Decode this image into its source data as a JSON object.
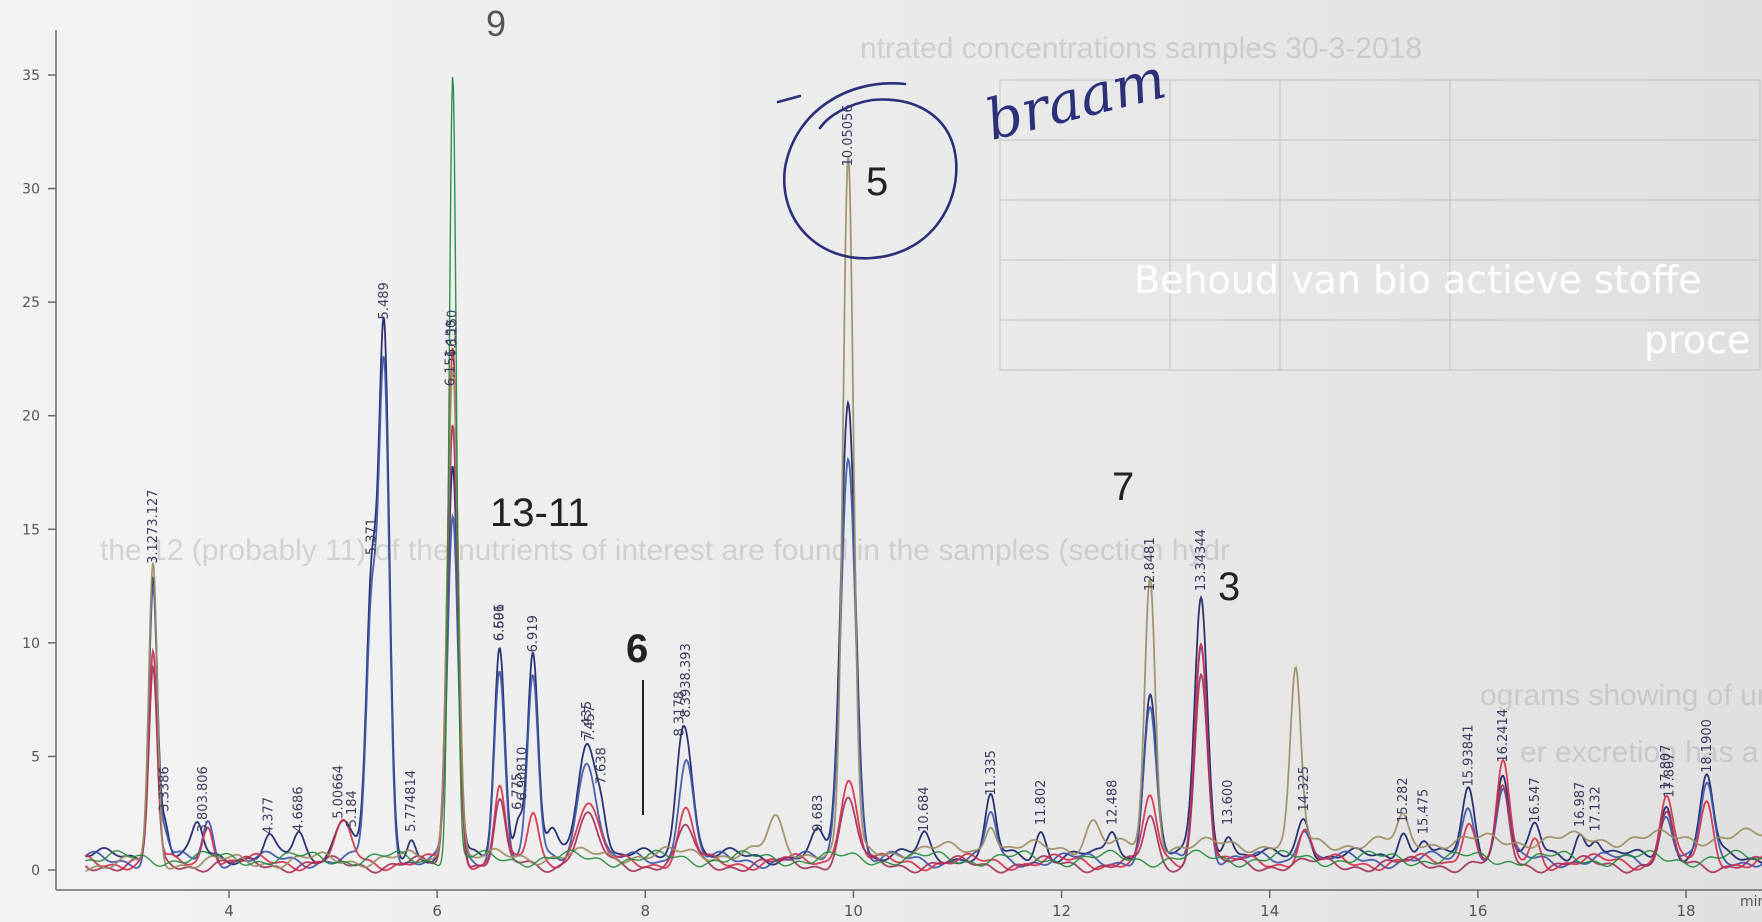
{
  "overlay": {
    "line1": "Behoud van bio actieve stoffe",
    "line2": "proce"
  },
  "background_doc": {
    "heading": "ntrated concentrations samples 30-3-2018",
    "paragraph1": "the 12 (probably 11) of the nutrients of interest are found in the samples (section hydr",
    "paragraph2_line1": "ograms showing of unknown compounds that show a similar ratio at to the nutrie",
    "paragraph2_line2": "er excretion has a higher amount of accurate quantification the chromatogram can be use"
  },
  "annotations": {
    "peak_9": "9",
    "peak_13_11": "13-11",
    "peak_6": "6",
    "peak_5": "5",
    "peak_7": "7",
    "peak_3": "3",
    "handwritten": "braam"
  },
  "colors": {
    "background": "#ebebeb",
    "axis": "#6a6a6a",
    "navy": "#1c2468",
    "blue": "#3d57a8",
    "red": "#d6304c",
    "magenta": "#a3345c",
    "olive": "#9c8e68",
    "green": "#1e8a3a",
    "ink": "#2c2f7a",
    "overlay_text": "#ffffff"
  },
  "chart_data": {
    "type": "line",
    "title": "",
    "xlabel": "min",
    "ylabel": "",
    "xlim": [
      2.6,
      19.2
    ],
    "ylim": [
      -0.5,
      37
    ],
    "x_ticks": [
      4,
      6,
      8,
      10,
      12,
      14,
      16,
      18
    ],
    "y_ticks": [
      0,
      5,
      10,
      15,
      20,
      25,
      30,
      35
    ],
    "grid": false,
    "series": [
      {
        "baseline": 0.6,
        "color": "#1c2468",
        "peaks": [
          [
            3.27,
            12.5,
            0.04
          ],
          [
            3.38,
            1.5,
            0.04
          ],
          [
            3.7,
            1.3,
            0.05
          ],
          [
            4.38,
            0.8,
            0.05
          ],
          [
            4.67,
            0.9,
            0.05
          ],
          [
            5.1,
            1.8,
            0.08
          ],
          [
            5.37,
            11.8,
            0.05
          ],
          [
            5.49,
            22.8,
            0.05
          ],
          [
            5.75,
            0.9,
            0.04
          ],
          [
            6.15,
            17,
            0.05
          ],
          [
            6.6,
            9.3,
            0.05
          ],
          [
            6.78,
            1.8,
            0.04
          ],
          [
            6.92,
            8.8,
            0.05
          ],
          [
            7.1,
            1,
            0.05
          ],
          [
            7.44,
            5,
            0.09
          ],
          [
            7.58,
            1.5,
            0.05
          ],
          [
            8.39,
            5.2,
            0.07
          ],
          [
            8.33,
            1.5,
            0.05
          ],
          [
            9.66,
            0.9,
            0.06
          ],
          [
            9.95,
            20,
            0.07
          ],
          [
            10.68,
            0.9,
            0.05
          ],
          [
            11.32,
            2.5,
            0.05
          ],
          [
            11.8,
            1.2,
            0.05
          ],
          [
            12.49,
            1.2,
            0.05
          ],
          [
            12.85,
            7.2,
            0.06
          ],
          [
            13.34,
            11.5,
            0.06
          ],
          [
            13.6,
            1.2,
            0.05
          ],
          [
            14.33,
            1.8,
            0.06
          ],
          [
            15.28,
            1.3,
            0.05
          ],
          [
            15.48,
            0.8,
            0.05
          ],
          [
            15.91,
            2.9,
            0.06
          ],
          [
            16.24,
            3.7,
            0.06
          ],
          [
            16.55,
            1.3,
            0.05
          ],
          [
            16.98,
            1.1,
            0.05
          ],
          [
            17.13,
            0.9,
            0.05
          ],
          [
            17.81,
            2.3,
            0.06
          ],
          [
            18.2,
            3.5,
            0.06
          ]
        ]
      },
      {
        "baseline": 0.45,
        "color": "#3d57a8",
        "peaks": [
          [
            3.27,
            12,
            0.04
          ],
          [
            3.38,
            1.2,
            0.04
          ],
          [
            3.8,
            1.7,
            0.05
          ],
          [
            5.37,
            10.8,
            0.05
          ],
          [
            5.49,
            21.5,
            0.05
          ],
          [
            6.15,
            15,
            0.05
          ],
          [
            6.6,
            8.5,
            0.05
          ],
          [
            6.92,
            8,
            0.05
          ],
          [
            7.44,
            4.5,
            0.09
          ],
          [
            8.39,
            4.5,
            0.07
          ],
          [
            9.95,
            18,
            0.07
          ],
          [
            11.32,
            2,
            0.05
          ],
          [
            12.85,
            6.5,
            0.06
          ],
          [
            13.34,
            9.5,
            0.06
          ],
          [
            14.33,
            1.6,
            0.06
          ],
          [
            15.91,
            2.5,
            0.06
          ],
          [
            16.24,
            3.2,
            0.06
          ],
          [
            17.81,
            2.1,
            0.06
          ],
          [
            18.2,
            3.2,
            0.06
          ]
        ]
      },
      {
        "baseline": 0.35,
        "color": "#d6304c",
        "peaks": [
          [
            3.27,
            9.2,
            0.04
          ],
          [
            3.8,
            1.8,
            0.05
          ],
          [
            5.1,
            1.5,
            0.08
          ],
          [
            6.15,
            22.5,
            0.05
          ],
          [
            6.6,
            3.5,
            0.05
          ],
          [
            6.92,
            2,
            0.05
          ],
          [
            7.44,
            2.7,
            0.1
          ],
          [
            8.39,
            2.2,
            0.07
          ],
          [
            9.95,
            3.7,
            0.08
          ],
          [
            12.85,
            2.8,
            0.06
          ],
          [
            13.34,
            9.8,
            0.06
          ],
          [
            14.33,
            1.4,
            0.06
          ],
          [
            15.91,
            2,
            0.06
          ],
          [
            16.24,
            4.2,
            0.06
          ],
          [
            16.55,
            1,
            0.05
          ],
          [
            17.81,
            3,
            0.06
          ],
          [
            18.2,
            2.5,
            0.06
          ]
        ]
      },
      {
        "baseline": 0.25,
        "color": "#a3345c",
        "peaks": [
          [
            3.27,
            8.5,
            0.04
          ],
          [
            6.15,
            19.5,
            0.05
          ],
          [
            6.6,
            2.6,
            0.05
          ],
          [
            7.44,
            2,
            0.1
          ],
          [
            8.39,
            1.6,
            0.07
          ],
          [
            9.95,
            2.8,
            0.08
          ],
          [
            12.85,
            2,
            0.06
          ],
          [
            13.34,
            8.5,
            0.06
          ],
          [
            16.24,
            3.2,
            0.06
          ],
          [
            17.81,
            2,
            0.06
          ]
        ]
      },
      {
        "baseline": 0.3,
        "color": "#9c8e68",
        "slope": 1.2,
        "peaks": [
          [
            3.27,
            13,
            0.04
          ],
          [
            6.15,
            22,
            0.05
          ],
          [
            9.25,
            1.4,
            0.07
          ],
          [
            9.95,
            30.5,
            0.05
          ],
          [
            11.32,
            1.3,
            0.05
          ],
          [
            12.3,
            1.2,
            0.07
          ],
          [
            12.85,
            11.8,
            0.05
          ],
          [
            14.25,
            7.5,
            0.05
          ],
          [
            15.28,
            1,
            0.05
          ]
        ]
      },
      {
        "baseline": 0.5,
        "color": "#1e8a3a",
        "peaks": [
          [
            6.15,
            34.5,
            0.035
          ]
        ]
      }
    ],
    "peak_labels": [
      {
        "x": 3.27,
        "text": "3.1273.127"
      },
      {
        "x": 3.38,
        "text": "3.3386"
      },
      {
        "x": 3.75,
        "text": "3.803.806"
      },
      {
        "x": 4.38,
        "text": "4.377"
      },
      {
        "x": 4.67,
        "text": "4.6686"
      },
      {
        "x": 5.05,
        "text": "5.00664"
      },
      {
        "x": 5.18,
        "text": "5.184"
      },
      {
        "x": 5.37,
        "text": "5.371"
      },
      {
        "x": 5.49,
        "text": "5.489"
      },
      {
        "x": 5.75,
        "text": "5.774814"
      },
      {
        "x": 6.15,
        "text": "6.150"
      },
      {
        "x": 6.14,
        "text": "6.150"
      },
      {
        "x": 6.13,
        "text": "6.151"
      },
      {
        "x": 6.6,
        "text": "6.601"
      },
      {
        "x": 6.6,
        "text": "6.596"
      },
      {
        "x": 6.77,
        "text": "6.775"
      },
      {
        "x": 6.82,
        "text": "6.90810"
      },
      {
        "x": 6.92,
        "text": "6.919"
      },
      {
        "x": 7.44,
        "text": "7.435"
      },
      {
        "x": 7.47,
        "text": "7.457"
      },
      {
        "x": 7.58,
        "text": "7.638"
      },
      {
        "x": 8.33,
        "text": "8.3178"
      },
      {
        "x": 8.39,
        "text": "8.3938.393"
      },
      {
        "x": 9.66,
        "text": "9.683"
      },
      {
        "x": 9.95,
        "text": "10.05056"
      },
      {
        "x": 10.68,
        "text": "10.684"
      },
      {
        "x": 11.32,
        "text": "11.335"
      },
      {
        "x": 11.8,
        "text": "11.802"
      },
      {
        "x": 12.49,
        "text": "12.488"
      },
      {
        "x": 12.85,
        "text": "12.8481"
      },
      {
        "x": 13.34,
        "text": "13.34344"
      },
      {
        "x": 13.6,
        "text": "13.600"
      },
      {
        "x": 14.33,
        "text": "14.325"
      },
      {
        "x": 15.28,
        "text": "15.282"
      },
      {
        "x": 15.48,
        "text": "15.475"
      },
      {
        "x": 15.91,
        "text": "15.93841"
      },
      {
        "x": 16.24,
        "text": "16.2414"
      },
      {
        "x": 16.55,
        "text": "16.547"
      },
      {
        "x": 16.98,
        "text": "16.987"
      },
      {
        "x": 17.13,
        "text": "17.132"
      },
      {
        "x": 17.81,
        "text": "17.807"
      },
      {
        "x": 17.84,
        "text": "17.807"
      },
      {
        "x": 18.2,
        "text": "18.1900"
      }
    ]
  }
}
